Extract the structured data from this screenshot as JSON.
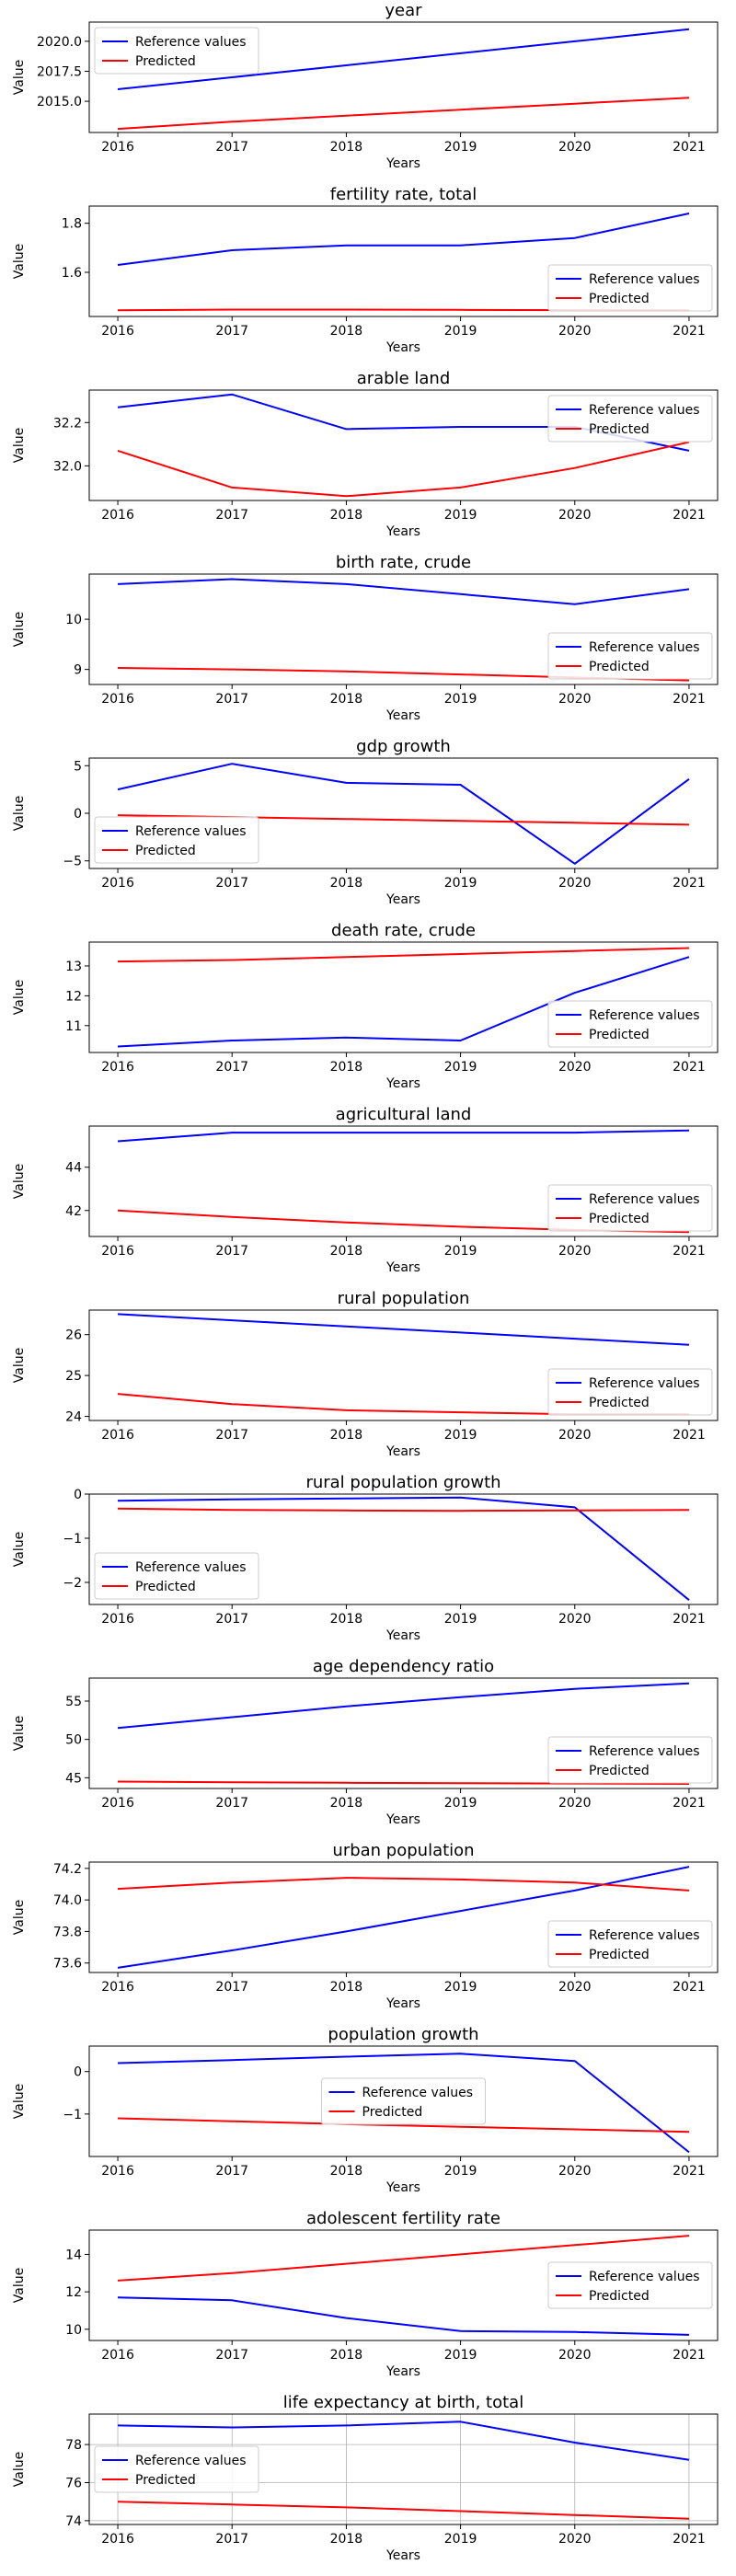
{
  "chart_data": [
    {
      "type": "line",
      "title": "year",
      "xlabel": "Years",
      "ylabel": "Value",
      "x": [
        2016,
        2017,
        2018,
        2019,
        2020,
        2021
      ],
      "series": [
        {
          "name": "Reference values",
          "color": "#0000ff",
          "values": [
            2016,
            2017,
            2018,
            2019,
            2020,
            2021
          ]
        },
        {
          "name": "Predicted",
          "color": "#ff0000",
          "values": [
            2012.7,
            2013.3,
            2013.8,
            2014.3,
            2014.8,
            2015.3
          ]
        }
      ],
      "ylim": [
        2012.4,
        2021.6
      ],
      "yticks": [
        2015.0,
        2017.5,
        2020.0
      ],
      "ytick_labels": [
        "2015.0",
        "2017.5",
        "2020.0"
      ],
      "legend": "upper-left",
      "grid": false
    },
    {
      "type": "line",
      "title": "fertility rate, total",
      "xlabel": "Years",
      "ylabel": "Value",
      "x": [
        2016,
        2017,
        2018,
        2019,
        2020,
        2021
      ],
      "series": [
        {
          "name": "Reference values",
          "color": "#0000ff",
          "values": [
            1.63,
            1.69,
            1.71,
            1.71,
            1.74,
            1.84
          ]
        },
        {
          "name": "Predicted",
          "color": "#ff0000",
          "values": [
            1.445,
            1.448,
            1.448,
            1.447,
            1.446,
            1.445
          ]
        }
      ],
      "ylim": [
        1.42,
        1.87
      ],
      "yticks": [
        1.6,
        1.8
      ],
      "ytick_labels": [
        "1.6",
        "1.8"
      ],
      "legend": "lower-right",
      "grid": false
    },
    {
      "type": "line",
      "title": "arable land",
      "xlabel": "Years",
      "ylabel": "Value",
      "x": [
        2016,
        2017,
        2018,
        2019,
        2020,
        2021
      ],
      "series": [
        {
          "name": "Reference values",
          "color": "#0000ff",
          "values": [
            32.27,
            32.33,
            32.17,
            32.18,
            32.18,
            32.07
          ]
        },
        {
          "name": "Predicted",
          "color": "#ff0000",
          "values": [
            32.07,
            31.9,
            31.86,
            31.9,
            31.99,
            32.11
          ]
        }
      ],
      "ylim": [
        31.84,
        32.35
      ],
      "yticks": [
        32.0,
        32.2
      ],
      "ytick_labels": [
        "32.0",
        "32.2"
      ],
      "legend": "upper-right",
      "grid": false
    },
    {
      "type": "line",
      "title": "birth rate, crude",
      "xlabel": "Years",
      "ylabel": "Value",
      "x": [
        2016,
        2017,
        2018,
        2019,
        2020,
        2021
      ],
      "series": [
        {
          "name": "Reference values",
          "color": "#0000ff",
          "values": [
            10.7,
            10.8,
            10.7,
            10.5,
            10.3,
            10.6
          ]
        },
        {
          "name": "Predicted",
          "color": "#ff0000",
          "values": [
            9.03,
            9.0,
            8.96,
            8.9,
            8.84,
            8.78
          ]
        }
      ],
      "ylim": [
        8.7,
        10.9
      ],
      "yticks": [
        9,
        10
      ],
      "ytick_labels": [
        "9",
        "10"
      ],
      "legend": "lower-right",
      "grid": false
    },
    {
      "type": "line",
      "title": "gdp growth",
      "xlabel": "Years",
      "ylabel": "Value",
      "x": [
        2016,
        2017,
        2018,
        2019,
        2020,
        2021
      ],
      "series": [
        {
          "name": "Reference values",
          "color": "#0000ff",
          "values": [
            2.5,
            5.2,
            3.2,
            3.0,
            -5.3,
            3.6
          ]
        },
        {
          "name": "Predicted",
          "color": "#ff0000",
          "values": [
            -0.2,
            -0.4,
            -0.6,
            -0.8,
            -1.0,
            -1.2
          ]
        }
      ],
      "ylim": [
        -5.8,
        5.8
      ],
      "yticks": [
        -5,
        0,
        5
      ],
      "ytick_labels": [
        "−5",
        "0",
        "5"
      ],
      "legend": "lower-left",
      "grid": false
    },
    {
      "type": "line",
      "title": "death rate, crude",
      "xlabel": "Years",
      "ylabel": "Value",
      "x": [
        2016,
        2017,
        2018,
        2019,
        2020,
        2021
      ],
      "series": [
        {
          "name": "Reference values",
          "color": "#0000ff",
          "values": [
            10.3,
            10.5,
            10.6,
            10.5,
            12.1,
            13.3
          ]
        },
        {
          "name": "Predicted",
          "color": "#ff0000",
          "values": [
            13.15,
            13.2,
            13.3,
            13.4,
            13.5,
            13.6
          ]
        }
      ],
      "ylim": [
        10.1,
        13.8
      ],
      "yticks": [
        11,
        12,
        13
      ],
      "ytick_labels": [
        "11",
        "12",
        "13"
      ],
      "legend": "lower-right",
      "grid": false
    },
    {
      "type": "line",
      "title": "agricultural land",
      "xlabel": "Years",
      "ylabel": "Value",
      "x": [
        2016,
        2017,
        2018,
        2019,
        2020,
        2021
      ],
      "series": [
        {
          "name": "Reference values",
          "color": "#0000ff",
          "values": [
            45.2,
            45.6,
            45.6,
            45.6,
            45.6,
            45.7
          ]
        },
        {
          "name": "Predicted",
          "color": "#ff0000",
          "values": [
            42.0,
            41.7,
            41.45,
            41.25,
            41.1,
            41.0
          ]
        }
      ],
      "ylim": [
        40.8,
        45.9
      ],
      "yticks": [
        42,
        44
      ],
      "ytick_labels": [
        "42",
        "44"
      ],
      "legend": "lower-right",
      "grid": false
    },
    {
      "type": "line",
      "title": "rural population",
      "xlabel": "Years",
      "ylabel": "Value",
      "x": [
        2016,
        2017,
        2018,
        2019,
        2020,
        2021
      ],
      "series": [
        {
          "name": "Reference values",
          "color": "#0000ff",
          "values": [
            26.5,
            26.35,
            26.2,
            26.05,
            25.9,
            25.75
          ]
        },
        {
          "name": "Predicted",
          "color": "#ff0000",
          "values": [
            24.55,
            24.3,
            24.15,
            24.1,
            24.05,
            24.05
          ]
        }
      ],
      "ylim": [
        23.9,
        26.6
      ],
      "yticks": [
        24,
        25,
        26
      ],
      "ytick_labels": [
        "24",
        "25",
        "26"
      ],
      "legend": "lower-right",
      "grid": false
    },
    {
      "type": "line",
      "title": "rural population growth",
      "xlabel": "Years",
      "ylabel": "Value",
      "x": [
        2016,
        2017,
        2018,
        2019,
        2020,
        2021
      ],
      "series": [
        {
          "name": "Reference values",
          "color": "#0000ff",
          "values": [
            -0.15,
            -0.12,
            -0.1,
            -0.08,
            -0.3,
            -2.4
          ]
        },
        {
          "name": "Predicted",
          "color": "#ff0000",
          "values": [
            -0.33,
            -0.36,
            -0.37,
            -0.38,
            -0.37,
            -0.36
          ]
        }
      ],
      "ylim": [
        -2.5,
        0.0
      ],
      "yticks": [
        -2,
        -1,
        0
      ],
      "ytick_labels": [
        "−2",
        "−1",
        "0"
      ],
      "legend": "lower-left",
      "grid": false
    },
    {
      "type": "line",
      "title": "age dependency ratio",
      "xlabel": "Years",
      "ylabel": "Value",
      "x": [
        2016,
        2017,
        2018,
        2019,
        2020,
        2021
      ],
      "series": [
        {
          "name": "Reference values",
          "color": "#0000ff",
          "values": [
            51.5,
            52.9,
            54.3,
            55.5,
            56.6,
            57.3
          ]
        },
        {
          "name": "Predicted",
          "color": "#ff0000",
          "values": [
            44.5,
            44.4,
            44.35,
            44.3,
            44.25,
            44.2
          ]
        }
      ],
      "ylim": [
        43.6,
        58.0
      ],
      "yticks": [
        45,
        50,
        55
      ],
      "ytick_labels": [
        "45",
        "50",
        "55"
      ],
      "legend": "lower-right",
      "grid": false
    },
    {
      "type": "line",
      "title": "urban population",
      "xlabel": "Years",
      "ylabel": "Value",
      "x": [
        2016,
        2017,
        2018,
        2019,
        2020,
        2021
      ],
      "series": [
        {
          "name": "Reference values",
          "color": "#0000ff",
          "values": [
            73.57,
            73.68,
            73.8,
            73.93,
            74.06,
            74.21
          ]
        },
        {
          "name": "Predicted",
          "color": "#ff0000",
          "values": [
            74.07,
            74.11,
            74.14,
            74.13,
            74.11,
            74.06
          ]
        }
      ],
      "ylim": [
        73.54,
        74.24
      ],
      "yticks": [
        73.6,
        73.8,
        74.0,
        74.2
      ],
      "ytick_labels": [
        "73.6",
        "73.8",
        "74.0",
        "74.2"
      ],
      "legend": "lower-right",
      "grid": false
    },
    {
      "type": "line",
      "title": "population growth",
      "xlabel": "Years",
      "ylabel": "Value",
      "x": [
        2016,
        2017,
        2018,
        2019,
        2020,
        2021
      ],
      "series": [
        {
          "name": "Reference values",
          "color": "#0000ff",
          "values": [
            0.2,
            0.27,
            0.35,
            0.42,
            0.25,
            -1.9
          ]
        },
        {
          "name": "Predicted",
          "color": "#ff0000",
          "values": [
            -1.1,
            -1.17,
            -1.24,
            -1.3,
            -1.36,
            -1.42
          ]
        }
      ],
      "ylim": [
        -2.0,
        0.6
      ],
      "yticks": [
        -1,
        0
      ],
      "ytick_labels": [
        "−1",
        "0"
      ],
      "legend": "center",
      "grid": false
    },
    {
      "type": "line",
      "title": "adolescent fertility rate",
      "xlabel": "Years",
      "ylabel": "Value",
      "x": [
        2016,
        2017,
        2018,
        2019,
        2020,
        2021
      ],
      "series": [
        {
          "name": "Reference values",
          "color": "#0000ff",
          "values": [
            11.7,
            11.55,
            10.6,
            9.9,
            9.85,
            9.7
          ]
        },
        {
          "name": "Predicted",
          "color": "#ff0000",
          "values": [
            12.6,
            13.0,
            13.5,
            14.0,
            14.5,
            15.0
          ]
        }
      ],
      "ylim": [
        9.4,
        15.3
      ],
      "yticks": [
        10,
        12,
        14
      ],
      "ytick_labels": [
        "10",
        "12",
        "14"
      ],
      "legend": "center-right",
      "grid": false
    },
    {
      "type": "line",
      "title": "life expectancy at birth, total",
      "xlabel": "Years",
      "ylabel": "Value",
      "x": [
        2016,
        2017,
        2018,
        2019,
        2020,
        2021
      ],
      "series": [
        {
          "name": "Reference values",
          "color": "#0000ff",
          "values": [
            79.0,
            78.9,
            79.0,
            79.2,
            78.1,
            77.2
          ]
        },
        {
          "name": "Predicted",
          "color": "#ff0000",
          "values": [
            75.0,
            74.85,
            74.7,
            74.5,
            74.3,
            74.1
          ]
        }
      ],
      "ylim": [
        73.8,
        79.6
      ],
      "yticks": [
        74,
        76,
        78
      ],
      "ytick_labels": [
        "74",
        "76",
        "78"
      ],
      "legend": "center-left",
      "grid": true
    }
  ]
}
